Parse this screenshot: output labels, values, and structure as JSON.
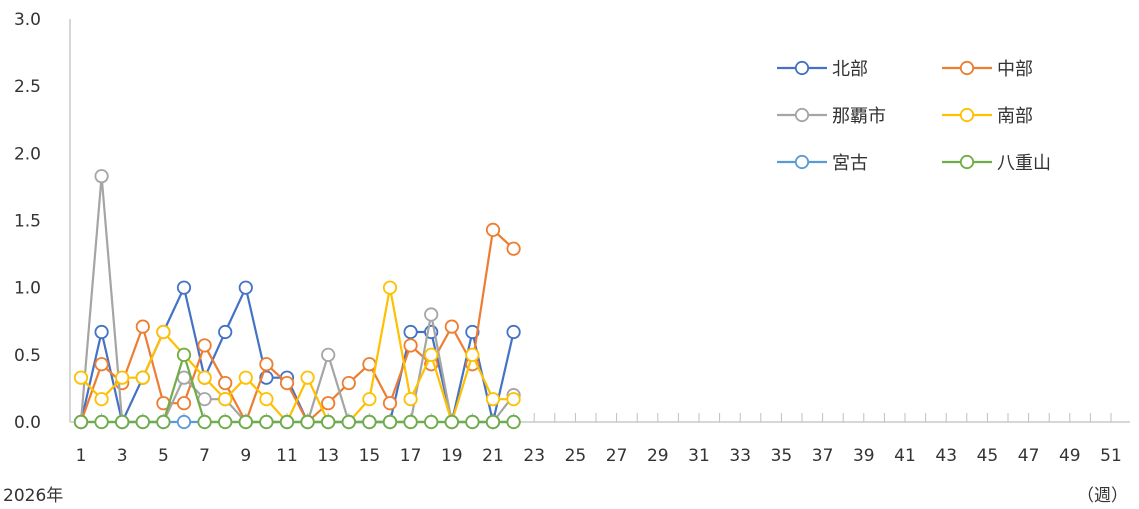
{
  "chart_data": {
    "type": "line",
    "x_label_note": "2026年",
    "x_unit": "（週）",
    "ylim": [
      0,
      3.0
    ],
    "y_ticks": [
      "0.0",
      "0.5",
      "1.0",
      "1.5",
      "2.0",
      "2.5",
      "3.0"
    ],
    "x_ticks": [
      "1",
      "3",
      "5",
      "7",
      "9",
      "11",
      "13",
      "15",
      "17",
      "19",
      "21",
      "23",
      "25",
      "27",
      "29",
      "31",
      "33",
      "35",
      "37",
      "39",
      "41",
      "43",
      "45",
      "47",
      "49",
      "51"
    ],
    "x_max_week": 53,
    "grid": false,
    "legend_position": "top-right",
    "series": [
      {
        "name": "北部",
        "color": "#4472C4",
        "values": [
          0,
          0.67,
          0,
          0.33,
          0.67,
          1.0,
          0.33,
          0.67,
          1.0,
          0.33,
          0.33,
          0,
          0,
          0,
          0,
          0,
          0.67,
          0.67,
          0,
          0.67,
          0,
          0.67
        ]
      },
      {
        "name": "中部",
        "color": "#ED7D31",
        "values": [
          0,
          0.43,
          0.29,
          0.71,
          0.14,
          0.14,
          0.57,
          0.29,
          0,
          0.43,
          0.29,
          0,
          0.14,
          0.29,
          0.43,
          0.14,
          0.57,
          0.43,
          0.71,
          0.43,
          1.43,
          1.29
        ]
      },
      {
        "name": "那覇市",
        "color": "#A5A5A5",
        "values": [
          0,
          1.83,
          0,
          0,
          0,
          0.33,
          0.17,
          0.17,
          0,
          0,
          0,
          0,
          0.5,
          0,
          0,
          0,
          0,
          0.8,
          0,
          0,
          0,
          0.2
        ]
      },
      {
        "name": "南部",
        "color": "#FFC000",
        "values": [
          0.33,
          0.17,
          0.33,
          0.33,
          0.67,
          0.5,
          0.33,
          0.17,
          0.33,
          0.17,
          0,
          0.33,
          0,
          0,
          0.17,
          1.0,
          0.17,
          0.5,
          0,
          0.5,
          0.17,
          0.17
        ]
      },
      {
        "name": "宮古",
        "color": "#5B9BD5",
        "values": [
          0,
          0,
          0,
          0,
          0,
          0,
          0,
          0,
          0,
          0,
          0,
          0,
          0,
          0,
          0,
          0,
          0,
          0,
          0,
          0,
          0,
          0
        ]
      },
      {
        "name": "八重山",
        "color": "#70AD47",
        "values": [
          0,
          0,
          0,
          0,
          0,
          0.5,
          0,
          0,
          0,
          0,
          0,
          0,
          0,
          0,
          0,
          0,
          0,
          0,
          0,
          0,
          0,
          0
        ]
      }
    ]
  }
}
